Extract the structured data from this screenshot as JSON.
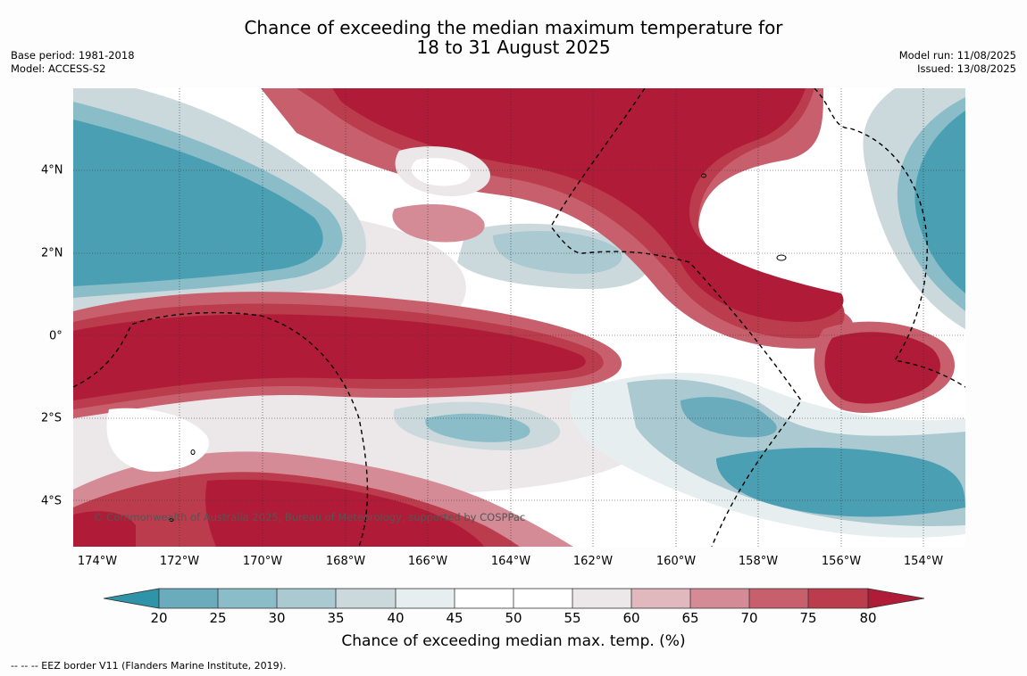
{
  "title_line1": "Chance of exceeding the median maximum temperature for",
  "title_line2": "18 to 31 August 2025",
  "base_period": "Base period: 1981-2018",
  "model": "Model: ACCESS-S2",
  "model_run": "Model run: 11/08/2025",
  "issued": "Issued: 13/08/2025",
  "lon_labels": [
    "174°W",
    "172°W",
    "170°W",
    "168°W",
    "166°W",
    "164°W",
    "162°W",
    "160°W",
    "158°W",
    "156°W",
    "154°W"
  ],
  "lat_labels": [
    "4°N",
    "2°N",
    "0°",
    "2°S",
    "4°S"
  ],
  "copyright": "© Commonwealth of Australia 2025, Bureau of Meteorology, supported by COSPPac",
  "colorbar": {
    "ticks": [
      "20",
      "25",
      "30",
      "35",
      "40",
      "45",
      "50",
      "55",
      "60",
      "65",
      "70",
      "75",
      "80"
    ],
    "title": "Chance of exceeding median max. temp. (%)",
    "colors": {
      "below20": "#2f94a8",
      "b20_25": "#6aacbc",
      "b25_30": "#8bbdc9",
      "b30_35": "#abc9d1",
      "b35_40": "#cbd9dd",
      "b40_45": "#e7eef0",
      "b45_50": "#ffffff",
      "b50_55": "#ffffff",
      "b55_60": "#ece7e9",
      "b60_65": "#e2b8bf",
      "b65_70": "#d48b96",
      "b70_75": "#c7606c",
      "b75_80": "#bb3c4c",
      "above80": "#b01c38"
    }
  },
  "legend_note": "--  --  -- EEZ border V11 (Flanders Marine Institute, 2019)."
}
